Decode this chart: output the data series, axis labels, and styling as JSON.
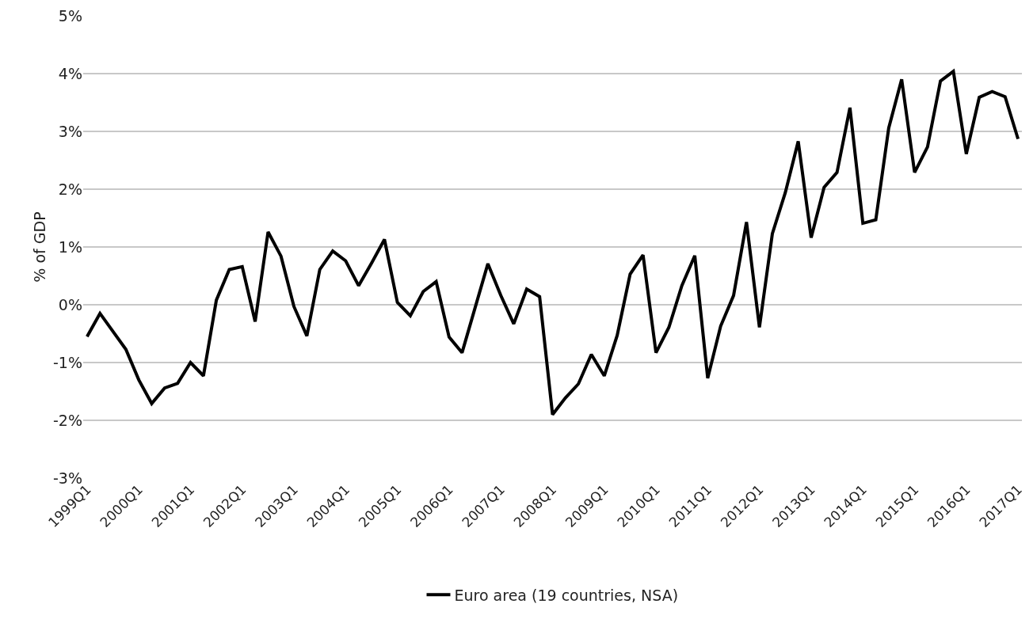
{
  "chart_data": {
    "type": "line",
    "ylabel": "% of GDP",
    "categories": [
      "1999Q1",
      null,
      null,
      null,
      "2000Q1",
      null,
      null,
      null,
      "2001Q1",
      null,
      null,
      null,
      "2002Q1",
      null,
      null,
      null,
      "2003Q1",
      null,
      null,
      null,
      "2004Q1",
      null,
      null,
      null,
      "2005Q1",
      null,
      null,
      null,
      "2006Q1",
      null,
      null,
      null,
      "2007Q1",
      null,
      null,
      null,
      "2008Q1",
      null,
      null,
      null,
      "2009Q1",
      null,
      null,
      null,
      "2010Q1",
      null,
      null,
      null,
      "2011Q1",
      null,
      null,
      null,
      "2012Q1",
      null,
      null,
      null,
      "2013Q1",
      null,
      null,
      null,
      "2014Q1",
      null,
      null,
      null,
      "2015Q1",
      null,
      null,
      null,
      "2016Q1",
      null,
      null,
      null,
      "2017Q1"
    ],
    "series": [
      {
        "name": "Euro area (19 countries, NSA)",
        "color": "#000000",
        "values": [
          -0.55,
          -0.15,
          -0.46,
          -0.77,
          -1.3,
          -1.71,
          -1.44,
          -1.36,
          -1.0,
          -1.23,
          0.08,
          0.61,
          0.66,
          -0.29,
          1.26,
          0.84,
          -0.03,
          -0.54,
          0.61,
          0.93,
          0.76,
          0.33,
          0.72,
          1.13,
          0.04,
          -0.19,
          0.23,
          0.4,
          -0.56,
          -0.83,
          -0.06,
          0.71,
          0.16,
          -0.33,
          0.27,
          0.14,
          -1.9,
          -1.61,
          -1.37,
          -0.86,
          -1.23,
          -0.53,
          0.53,
          0.86,
          -0.83,
          -0.39,
          0.33,
          0.85,
          -1.27,
          -0.37,
          0.16,
          1.43,
          -0.39,
          1.23,
          1.94,
          2.83,
          1.16,
          2.03,
          2.29,
          3.41,
          1.41,
          1.47,
          3.06,
          3.9,
          2.29,
          2.73,
          3.87,
          4.04,
          2.61,
          3.59,
          3.69,
          3.6,
          2.87
        ]
      }
    ],
    "ylim": [
      -3,
      5
    ],
    "yticks": [
      {
        "value": -3,
        "label": "-3%"
      },
      {
        "value": -2,
        "label": "-2%"
      },
      {
        "value": -1,
        "label": "-1%"
      },
      {
        "value": 0,
        "label": "0%"
      },
      {
        "value": 1,
        "label": "1%"
      },
      {
        "value": 2,
        "label": "2%"
      },
      {
        "value": 3,
        "label": "3%"
      },
      {
        "value": 4,
        "label": "4%"
      },
      {
        "value": 5,
        "label": "5%"
      }
    ],
    "grid": "y",
    "legend": "bottom",
    "marker": "none",
    "line_style": "solid"
  }
}
